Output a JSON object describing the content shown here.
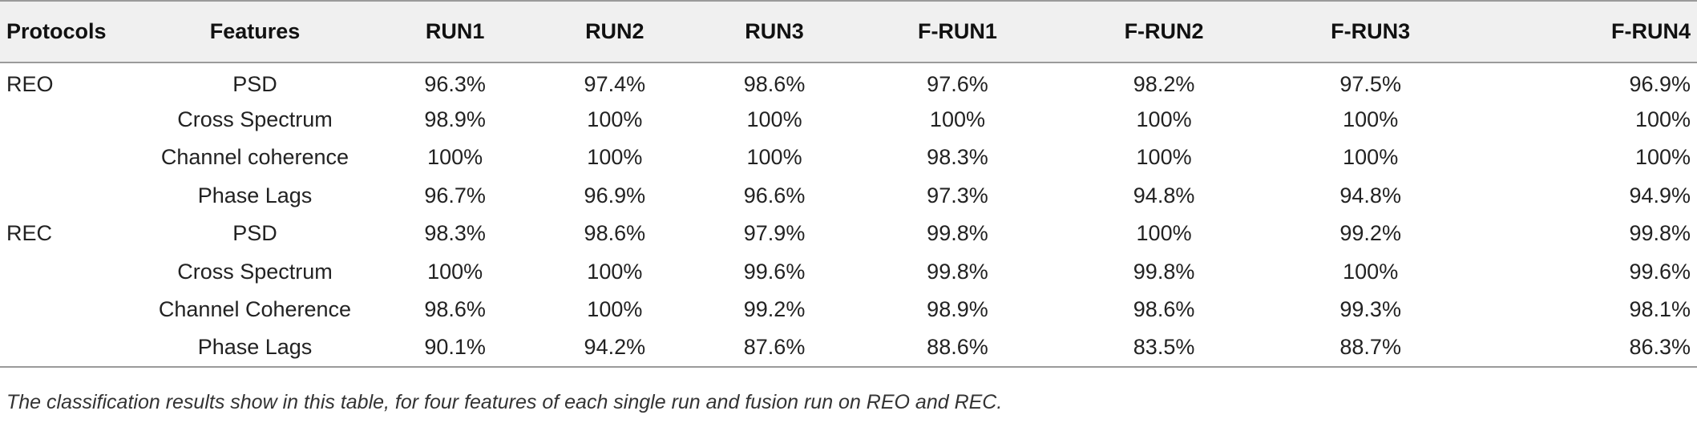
{
  "table": {
    "headers": [
      "Protocols",
      "Features",
      "RUN1",
      "RUN2",
      "RUN3",
      "F-RUN1",
      "F-RUN2",
      "F-RUN3",
      "F-RUN4"
    ],
    "rows": [
      [
        "REO",
        "PSD",
        "96.3%",
        "97.4%",
        "98.6%",
        "97.6%",
        "98.2%",
        "97.5%",
        "96.9%"
      ],
      [
        "",
        "Cross Spectrum",
        "98.9%",
        "100%",
        "100%",
        "100%",
        "100%",
        "100%",
        "100%"
      ],
      [
        "",
        "Channel coherence",
        "100%",
        "100%",
        "100%",
        "98.3%",
        "100%",
        "100%",
        "100%"
      ],
      [
        "",
        "Phase Lags",
        "96.7%",
        "96.9%",
        "96.6%",
        "97.3%",
        "94.8%",
        "94.8%",
        "94.9%"
      ],
      [
        "REC",
        "PSD",
        "98.3%",
        "98.6%",
        "97.9%",
        "99.8%",
        "100%",
        "99.2%",
        "99.8%"
      ],
      [
        "",
        "Cross Spectrum",
        "100%",
        "100%",
        "99.6%",
        "99.8%",
        "99.8%",
        "100%",
        "99.6%"
      ],
      [
        "",
        "Channel Coherence",
        "98.6%",
        "100%",
        "99.2%",
        "98.9%",
        "98.6%",
        "99.3%",
        "98.1%"
      ],
      [
        "",
        "Phase Lags",
        "90.1%",
        "94.2%",
        "87.6%",
        "88.6%",
        "83.5%",
        "88.7%",
        "86.3%"
      ]
    ]
  },
  "caption": "The classification results show in this table, for four features of each single run and fusion run on REO and REC."
}
